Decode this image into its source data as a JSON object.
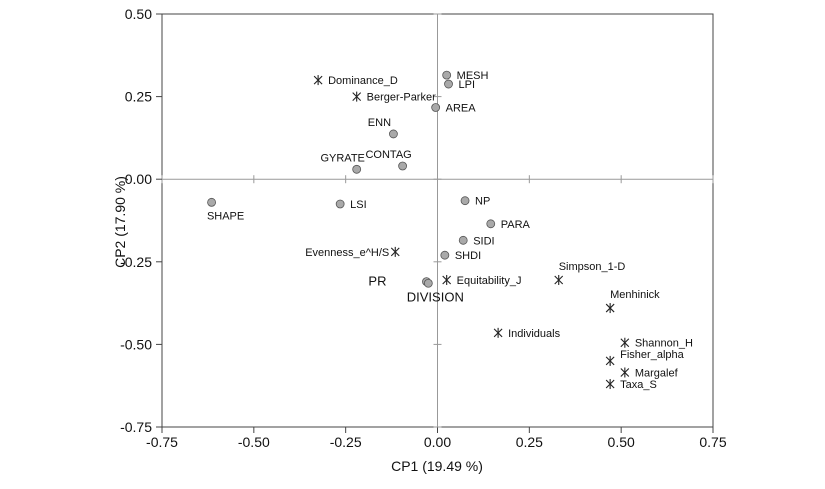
{
  "chart_data": {
    "type": "scatter",
    "title": "",
    "xlabel": "CP1 (19.49 %)",
    "ylabel": "CP2 (17.90 %)",
    "xlim": [
      -0.75,
      0.75
    ],
    "ylim": [
      -0.75,
      0.5
    ],
    "x_ticks": [
      -0.75,
      -0.5,
      -0.25,
      0,
      0.25,
      0.5,
      0.75
    ],
    "x_tick_labels": [
      "-0.75",
      "-0.50",
      "-0.25",
      "0.00",
      "0.25",
      "0.50",
      "0.75"
    ],
    "y_ticks": [
      0.5,
      0.25,
      0,
      -0.25,
      -0.5,
      -0.75
    ],
    "y_tick_labels": [
      "0.50",
      "0.25",
      "0.00",
      "-0.25",
      "-0.50",
      "-0.75"
    ],
    "grid": false,
    "zero_lines": true,
    "series": [
      {
        "marker": "circle",
        "color": "#a9a9a9",
        "points": [
          {
            "label": "MESH",
            "x": 0.025,
            "y": 0.315,
            "pos": "right"
          },
          {
            "label": "LPI",
            "x": 0.03,
            "y": 0.288,
            "pos": "right"
          },
          {
            "label": "AREA",
            "x": -0.005,
            "y": 0.217,
            "pos": "right"
          },
          {
            "label": "ENN",
            "x": -0.12,
            "y": 0.137,
            "pos": "above-left"
          },
          {
            "label": "GYRATE",
            "x": -0.22,
            "y": 0.03,
            "pos": "above-left"
          },
          {
            "label": "CONTAG",
            "x": -0.095,
            "y": 0.04,
            "pos": "above-left"
          },
          {
            "label": "SHAPE",
            "x": -0.615,
            "y": -0.07,
            "pos": "below"
          },
          {
            "label": "LSI",
            "x": -0.265,
            "y": -0.075,
            "pos": "right"
          },
          {
            "label": "NP",
            "x": 0.075,
            "y": -0.065,
            "pos": "right"
          },
          {
            "label": "PARA",
            "x": 0.145,
            "y": -0.135,
            "pos": "right"
          },
          {
            "label": "SIDI",
            "x": 0.07,
            "y": -0.185,
            "pos": "right"
          },
          {
            "label": "SHDI",
            "x": 0.02,
            "y": -0.23,
            "pos": "right"
          },
          {
            "label": "PR",
            "x": -0.03,
            "y": -0.31,
            "pos": "left-big"
          },
          {
            "label": "DIVISION",
            "x": -0.025,
            "y": -0.315,
            "pos": "below-big"
          }
        ]
      },
      {
        "marker": "asterisk",
        "color": "#222222",
        "points": [
          {
            "label": "Dominance_D",
            "x": -0.325,
            "y": 0.3,
            "pos": "right"
          },
          {
            "label": "Berger-Parker",
            "x": -0.22,
            "y": 0.25,
            "pos": "right"
          },
          {
            "label": "Evenness_e^H/S",
            "x": -0.115,
            "y": -0.22,
            "pos": "left"
          },
          {
            "label": "Equitability_J",
            "x": 0.025,
            "y": -0.305,
            "pos": "right"
          },
          {
            "label": "Simpson_1-D",
            "x": 0.33,
            "y": -0.305,
            "pos": "above-right"
          },
          {
            "label": "Menhinick",
            "x": 0.47,
            "y": -0.39,
            "pos": "above-right"
          },
          {
            "label": "Individuals",
            "x": 0.165,
            "y": -0.465,
            "pos": "right"
          },
          {
            "label": "Shannon_H",
            "x": 0.51,
            "y": -0.495,
            "pos": "right"
          },
          {
            "label": "Fisher_alpha",
            "x": 0.47,
            "y": -0.55,
            "pos": "right-above"
          },
          {
            "label": "Margalef",
            "x": 0.51,
            "y": -0.585,
            "pos": "right"
          },
          {
            "label": "Taxa_S",
            "x": 0.47,
            "y": -0.62,
            "pos": "right"
          }
        ]
      }
    ]
  }
}
